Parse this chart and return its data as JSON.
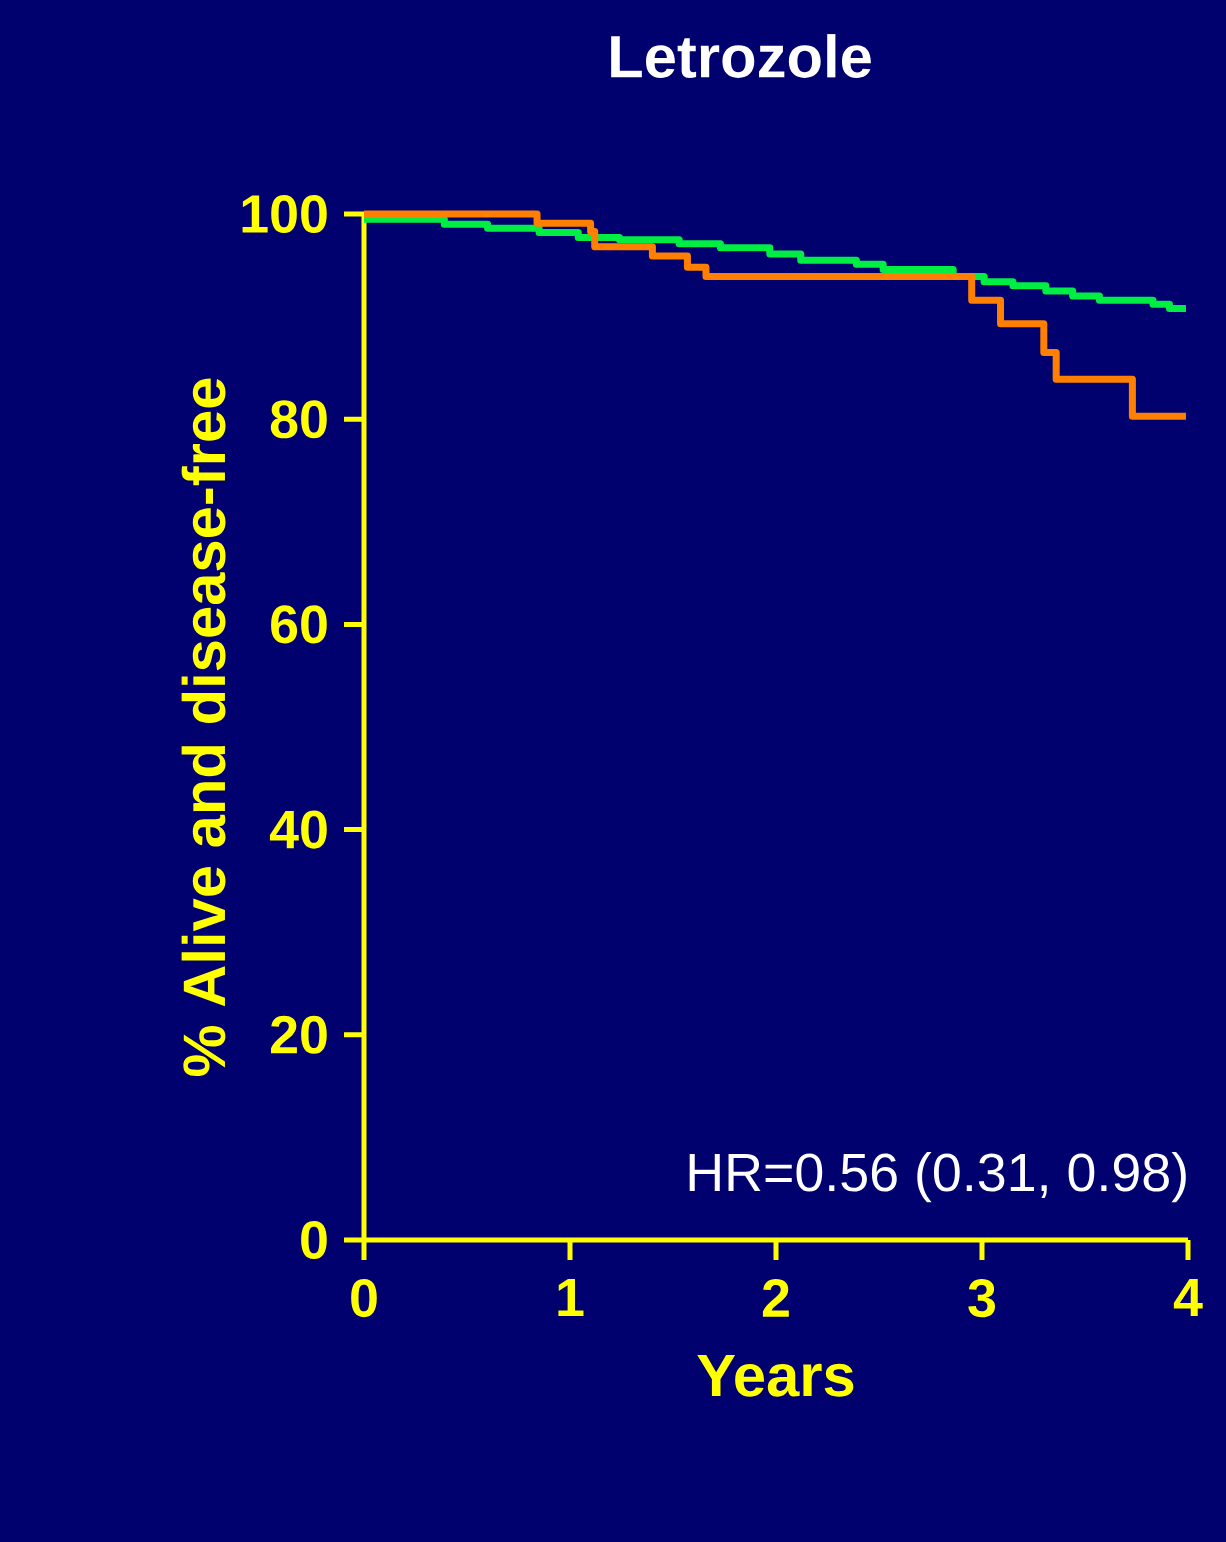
{
  "chart_data": {
    "type": "step",
    "title": "Letrozole",
    "xlabel": "Years",
    "ylabel": "% Alive and disease-free",
    "xlim": [
      0,
      4
    ],
    "ylim": [
      0,
      100
    ],
    "xticks": [
      0,
      1,
      2,
      3,
      4
    ],
    "yticks": [
      0,
      20,
      40,
      60,
      80,
      100
    ],
    "grid": false,
    "marker": "none",
    "line_style": "solid",
    "annotations": [
      "HR=0.56 (0.31, 0.98)"
    ],
    "series": [
      {
        "color": "#00ee44",
        "x": [
          0,
          0.39,
          0.6,
          0.85,
          1.04,
          1.24,
          1.53,
          1.73,
          1.97,
          2.12,
          2.39,
          2.52,
          2.86,
          3.01,
          3.15,
          3.31,
          3.44,
          3.57,
          3.83,
          3.91,
          3.99
        ],
        "values": [
          99.5,
          99.0,
          98.6,
          98.2,
          97.7,
          97.5,
          97.1,
          96.7,
          96.1,
          95.5,
          95.1,
          94.6,
          93.9,
          93.4,
          93.0,
          92.5,
          92.0,
          91.6,
          91.2,
          90.8,
          90.8
        ]
      },
      {
        "color": "#ff8000",
        "x": [
          0,
          0.84,
          1.1,
          1.12,
          1.4,
          1.57,
          1.66,
          2.95,
          3.09,
          3.3,
          3.36,
          3.73,
          3.99
        ],
        "values": [
          100,
          99.1,
          98.3,
          96.8,
          95.9,
          94.8,
          93.9,
          91.6,
          89.3,
          86.5,
          83.9,
          80.3,
          80.3
        ]
      }
    ]
  }
}
